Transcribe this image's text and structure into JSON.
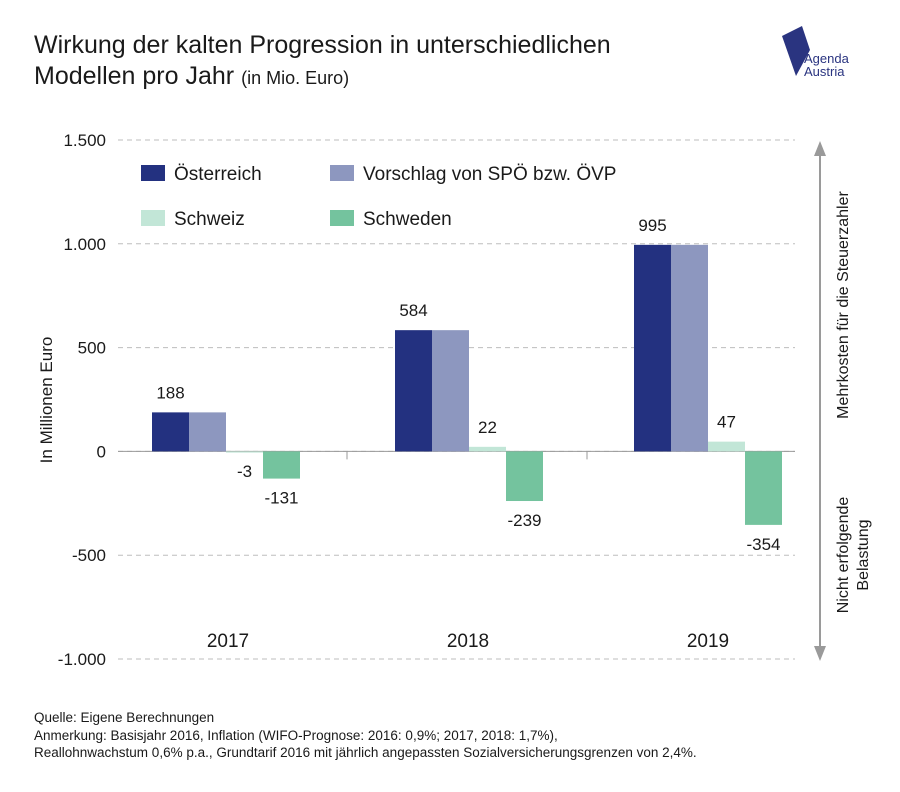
{
  "header": {
    "title_line1": "Wirkung der kalten Progression in unterschiedlichen",
    "title_line2": "Modellen pro Jahr",
    "title_unit": "(in Mio. Euro)"
  },
  "logo": {
    "line1": "Agenda",
    "line2": "Austria",
    "color": "#2a3480"
  },
  "chart_data": {
    "type": "bar",
    "categories": [
      "2017",
      "2018",
      "2019"
    ],
    "series": [
      {
        "name": "Österreich",
        "color": "#233180",
        "values": [
          188,
          584,
          995
        ]
      },
      {
        "name": "Vorschlag von SPÖ bzw. ÖVP",
        "color": "#8d97bf",
        "values": [
          188,
          584,
          995
        ]
      },
      {
        "name": "Schweiz",
        "color": "#c2e6d7",
        "values": [
          -3,
          22,
          47
        ]
      },
      {
        "name": "Schweden",
        "color": "#74c39e",
        "values": [
          -131,
          -239,
          -354
        ]
      }
    ],
    "data_labels": [
      {
        "category": "2017",
        "text": "188",
        "anchor_series": 0,
        "anchor_value": 188,
        "pos": "above"
      },
      {
        "category": "2017",
        "text": "-3",
        "anchor_series": 2,
        "anchor_value": -3,
        "pos": "below"
      },
      {
        "category": "2017",
        "text": "-131",
        "anchor_series": 3,
        "anchor_value": -131,
        "pos": "below"
      },
      {
        "category": "2018",
        "text": "584",
        "anchor_series": 0,
        "anchor_value": 584,
        "pos": "above"
      },
      {
        "category": "2018",
        "text": "22",
        "anchor_series": 2,
        "anchor_value": 22,
        "pos": "above"
      },
      {
        "category": "2018",
        "text": "-239",
        "anchor_series": 3,
        "anchor_value": -239,
        "pos": "below"
      },
      {
        "category": "2019",
        "text": "995",
        "anchor_series": 0,
        "anchor_value": 995,
        "pos": "above"
      },
      {
        "category": "2019",
        "text": "47",
        "anchor_series": 2,
        "anchor_value": 47,
        "pos": "above"
      },
      {
        "category": "2019",
        "text": "-354",
        "anchor_series": 3,
        "anchor_value": -354,
        "pos": "below"
      }
    ],
    "ylabel": "In Millionen Euro",
    "ylim": [
      -1000,
      1500
    ],
    "yticks": [
      1500,
      1000,
      500,
      0,
      -500,
      -1000
    ],
    "ytick_labels": [
      "1.500",
      "1.000",
      "500",
      "0",
      "-500",
      "-1.000"
    ],
    "grid": true,
    "legend_position": "top-left",
    "right_annotation_up": "Mehrkosten für die Steuerzahler",
    "right_annotation_down_line1": "Nicht erfolgende",
    "right_annotation_down_line2": "Belastung"
  },
  "footer": {
    "source": "Quelle: Eigene Berechnungen",
    "note_line1": "Anmerkung: Basisjahr 2016, Inflation (WIFO-Prognose: 2016: 0,9%; 2017, 2018: 1,7%),",
    "note_line2": "Reallohnwachstum 0,6% p.a., Grundtarif 2016 mit jährlich angepassten Sozialversicherungsgrenzen von 2,4%."
  }
}
